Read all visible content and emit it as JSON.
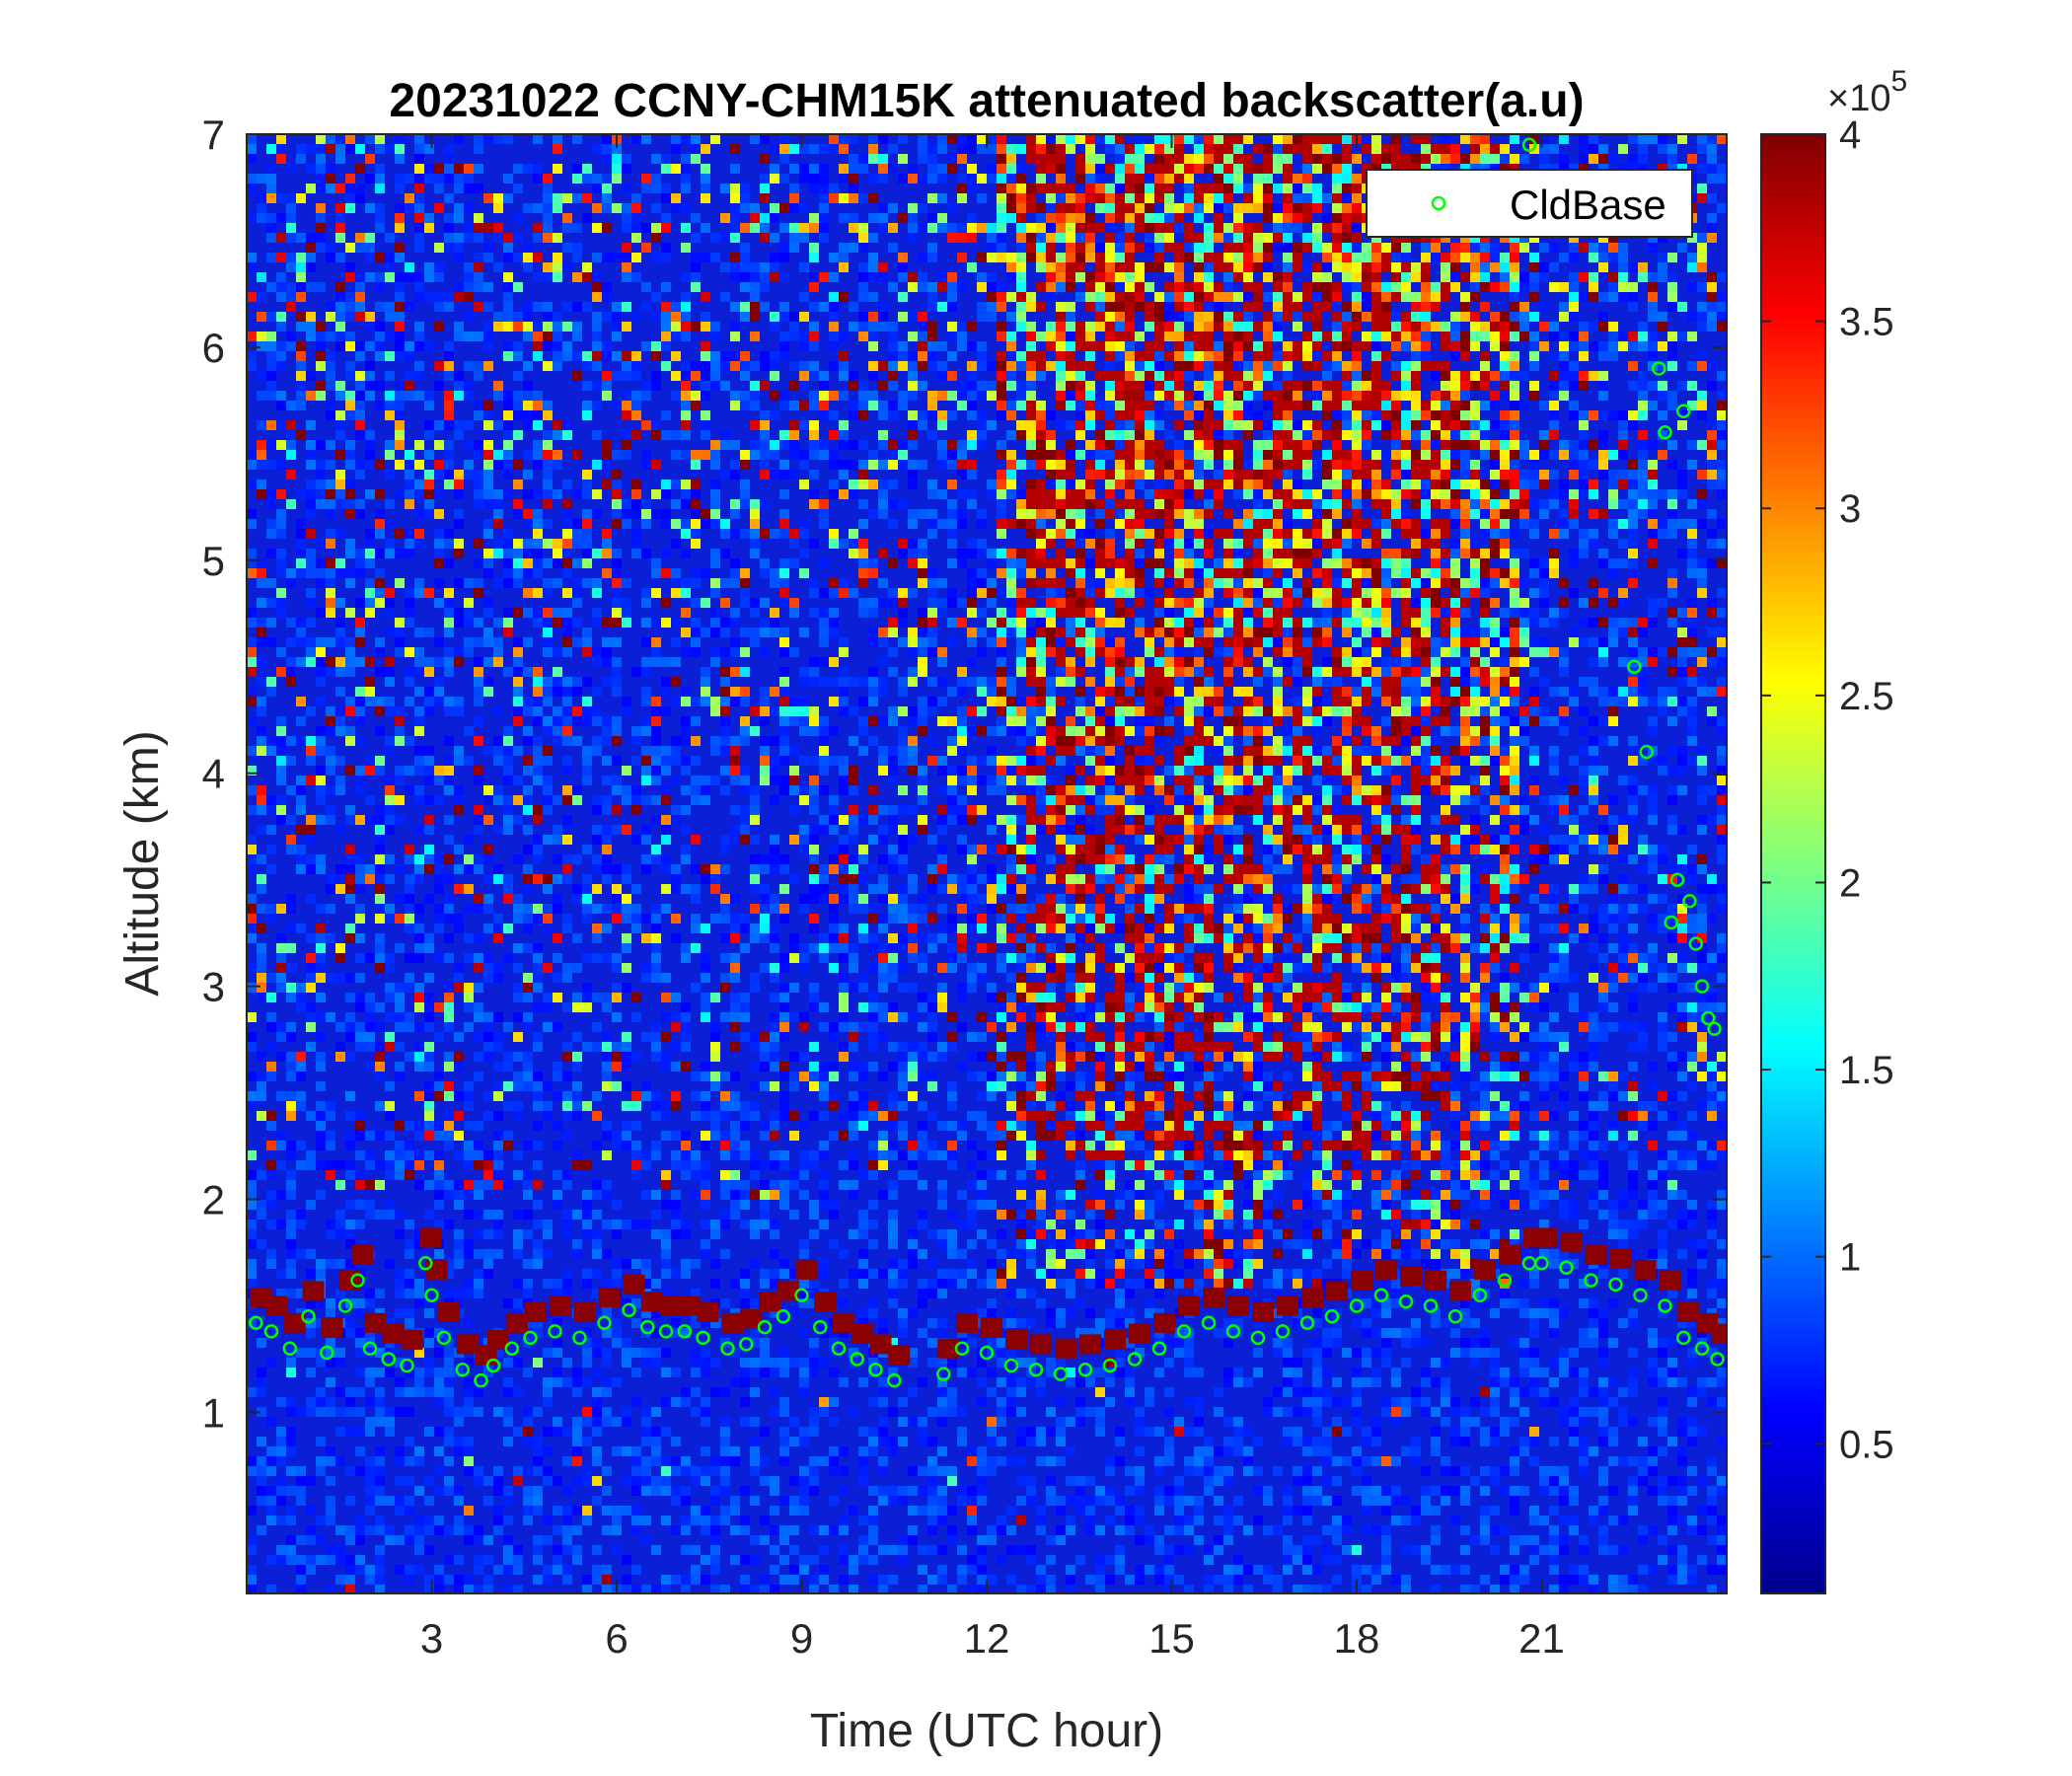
{
  "chart_data": {
    "type": "heatmap",
    "title": "20231022 CCNY-CHM15K attenuated backscatter(a.u)",
    "xlabel": "Time (UTC hour)",
    "ylabel": "Altitude (km)",
    "xlim": [
      0,
      24
    ],
    "ylim": [
      0.15,
      7
    ],
    "xticks": [
      3,
      6,
      9,
      12,
      15,
      18,
      21
    ],
    "yticks": [
      1,
      2,
      3,
      4,
      5,
      6,
      7
    ],
    "colorbar": {
      "colormap": "jet",
      "clim": [
        0.1,
        4
      ],
      "ticks": [
        0.5,
        1,
        1.5,
        2,
        2.5,
        3,
        3.5,
        4
      ],
      "exponent_prefix": "×10",
      "exponent": "5"
    },
    "legend": {
      "location": "top-right",
      "entries": [
        "CldBase"
      ]
    },
    "colors": {
      "cloud_base_marker": "#00ff00",
      "frame": "#262626"
    },
    "cloud_base_series": {
      "name": "CldBase",
      "marker": "circle",
      "x": [
        0.15,
        0.4,
        0.7,
        1.0,
        1.3,
        1.6,
        1.8,
        2.0,
        2.3,
        2.6,
        2.9,
        3.0,
        3.2,
        3.5,
        3.8,
        4.0,
        4.3,
        4.6,
        5.0,
        5.4,
        5.8,
        6.2,
        6.5,
        6.8,
        7.1,
        7.4,
        7.8,
        8.1,
        8.4,
        8.7,
        9.0,
        9.3,
        9.6,
        9.9,
        10.2,
        10.5,
        11.3,
        11.6,
        12.0,
        12.4,
        12.8,
        13.2,
        13.6,
        14.0,
        14.4,
        14.8,
        15.2,
        15.6,
        16.0,
        16.4,
        16.8,
        17.2,
        17.6,
        18.0,
        18.4,
        18.8,
        19.2,
        19.6,
        20.0,
        20.4,
        20.8,
        21.0,
        21.4,
        21.8,
        22.2,
        22.6,
        23.0,
        23.3,
        23.6,
        23.85,
        20.8,
        22.5,
        22.7,
        22.9,
        23.0,
        23.1,
        23.2,
        23.3,
        23.4,
        23.5,
        23.6,
        23.7,
        23.8
      ],
      "y": [
        1.42,
        1.38,
        1.3,
        1.45,
        1.28,
        1.5,
        1.62,
        1.3,
        1.25,
        1.22,
        1.7,
        1.55,
        1.35,
        1.2,
        1.15,
        1.22,
        1.3,
        1.35,
        1.38,
        1.35,
        1.42,
        1.48,
        1.4,
        1.38,
        1.38,
        1.35,
        1.3,
        1.32,
        1.4,
        1.45,
        1.55,
        1.4,
        1.3,
        1.25,
        1.2,
        1.15,
        1.18,
        1.3,
        1.28,
        1.22,
        1.2,
        1.18,
        1.2,
        1.22,
        1.25,
        1.3,
        1.38,
        1.42,
        1.38,
        1.35,
        1.38,
        1.42,
        1.45,
        1.5,
        1.55,
        1.52,
        1.5,
        1.45,
        1.55,
        1.62,
        1.7,
        1.7,
        1.68,
        1.62,
        1.6,
        1.55,
        1.5,
        1.35,
        1.3,
        1.25,
        6.95,
        4.5,
        4.1,
        5.9,
        5.6,
        3.3,
        3.5,
        5.7,
        3.4,
        3.2,
        3.0,
        2.85,
        2.8
      ]
    }
  }
}
